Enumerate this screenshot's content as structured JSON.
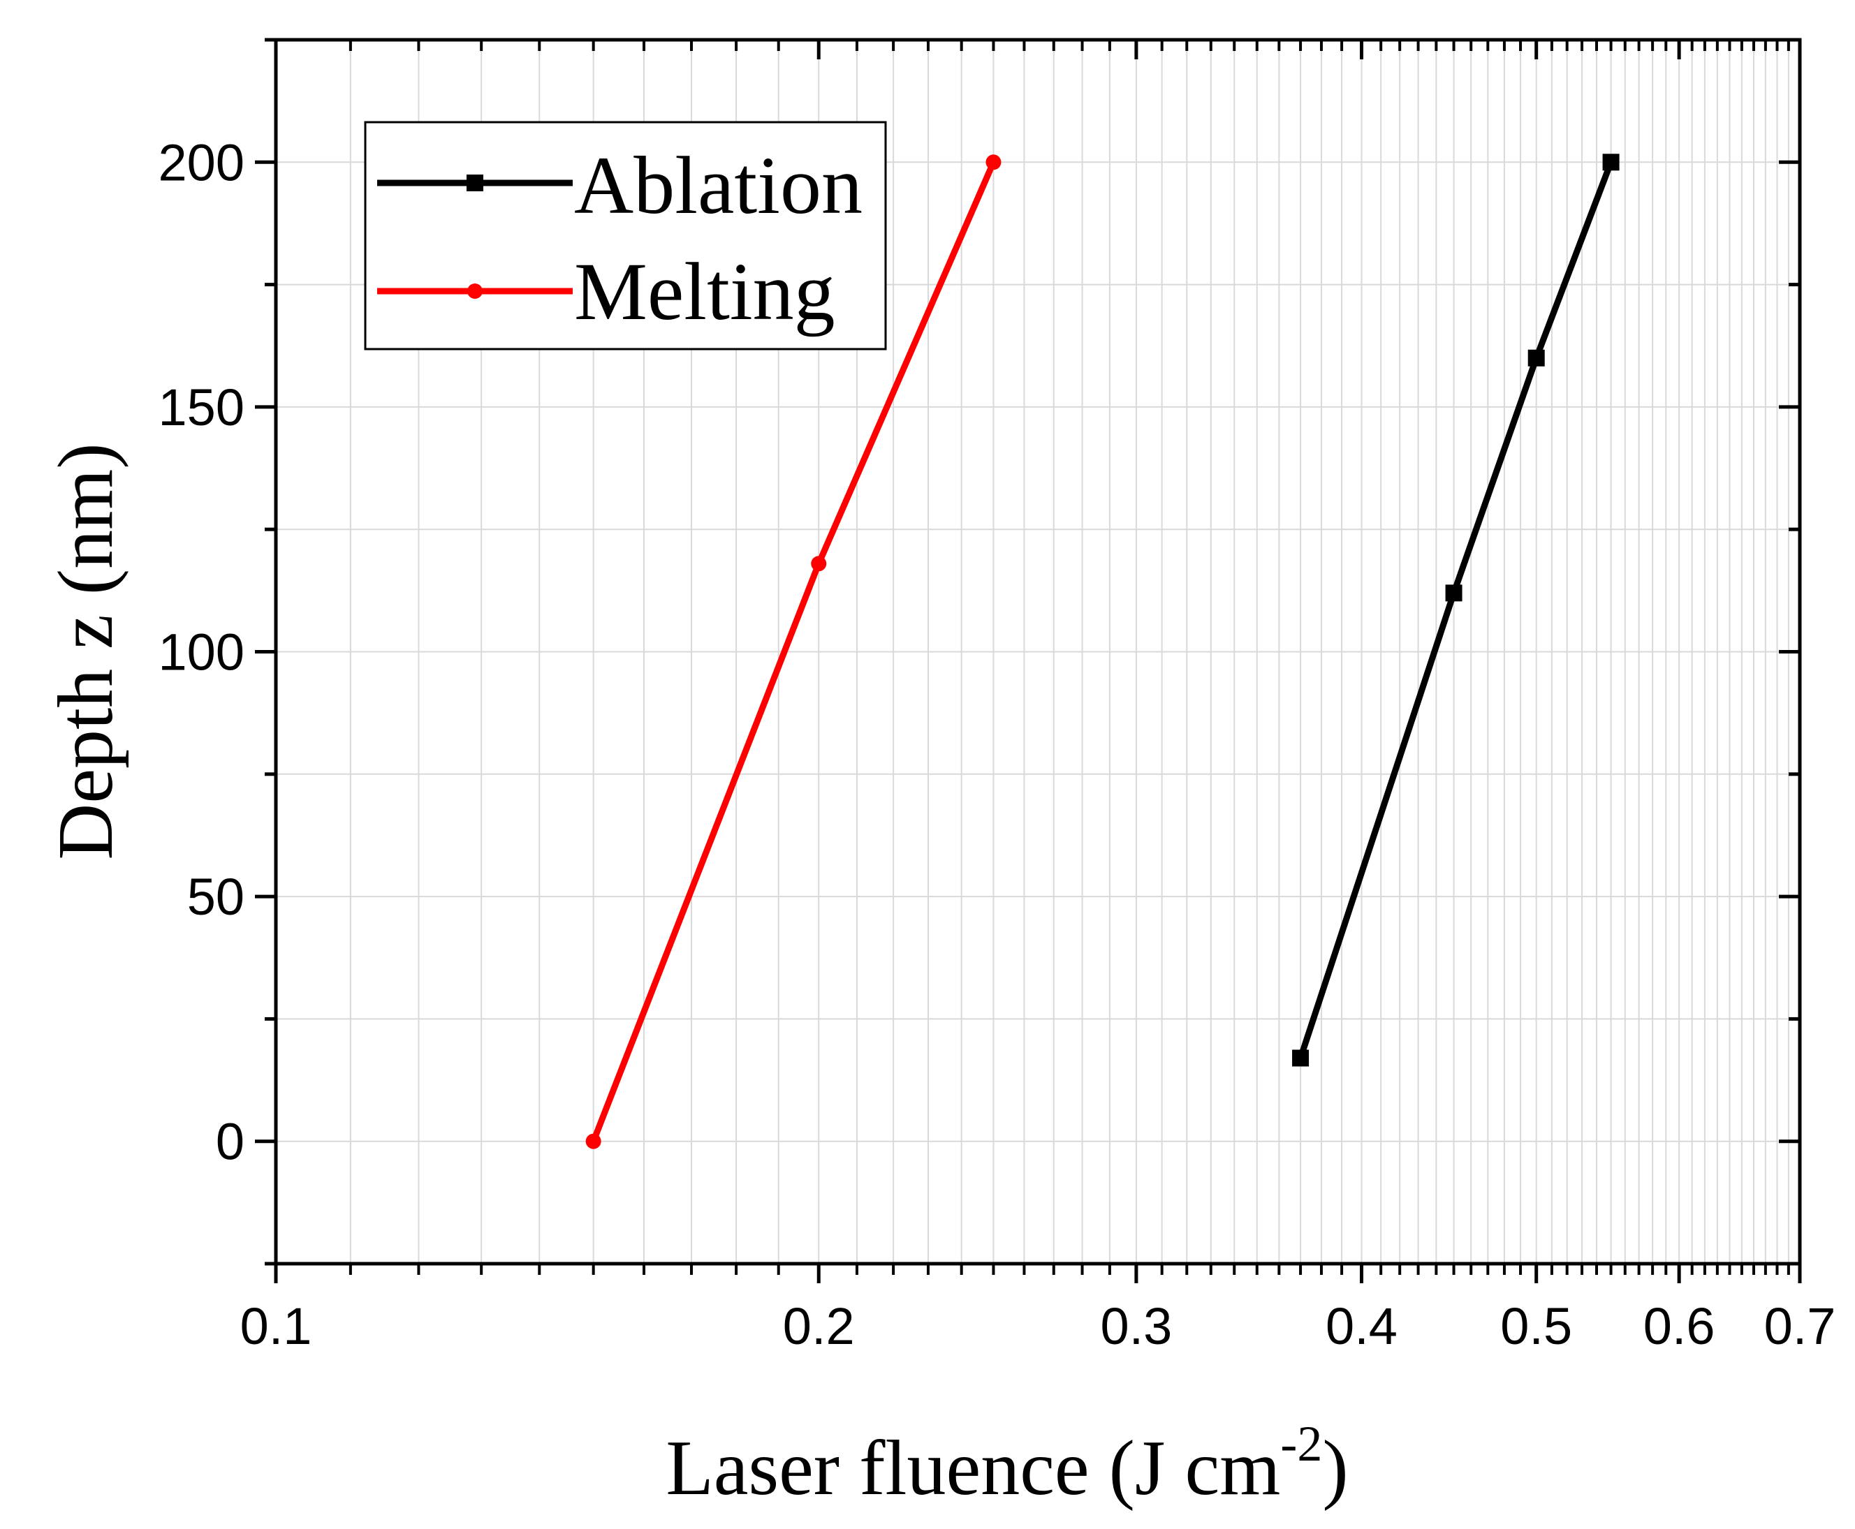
{
  "chart_data": {
    "type": "line",
    "title": "",
    "xlabel": "Laser fluence (J cm",
    "xlabel_sup": "-2",
    "xlabel_close": ")",
    "ylabel": "Depth z (nm)",
    "xscale": "log",
    "xlim": [
      0.1,
      0.7
    ],
    "ylim": [
      -25,
      225
    ],
    "grid": true,
    "legend_position": "top-left",
    "x_ticks": [
      {
        "value": 0.1,
        "label": "0.1"
      },
      {
        "value": 0.2,
        "label": "0.2"
      },
      {
        "value": 0.3,
        "label": "0.3"
      },
      {
        "value": 0.4,
        "label": "0.4"
      },
      {
        "value": 0.5,
        "label": "0.5"
      },
      {
        "value": 0.6,
        "label": "0.6"
      },
      {
        "value": 0.7,
        "label": "0.7"
      }
    ],
    "y_ticks": [
      {
        "value": 0,
        "label": "0"
      },
      {
        "value": 50,
        "label": "50"
      },
      {
        "value": 100,
        "label": "100"
      },
      {
        "value": 150,
        "label": "150"
      },
      {
        "value": 200,
        "label": "200"
      }
    ],
    "series": [
      {
        "name": "Ablation",
        "color": "#000000",
        "marker": "square",
        "x": [
          0.37,
          0.45,
          0.5,
          0.55
        ],
        "y": [
          17,
          112,
          160,
          200
        ]
      },
      {
        "name": "Melting",
        "color": "#ff0000",
        "marker": "circle",
        "x": [
          0.15,
          0.2,
          0.25
        ],
        "y": [
          0,
          118,
          200
        ]
      }
    ]
  }
}
